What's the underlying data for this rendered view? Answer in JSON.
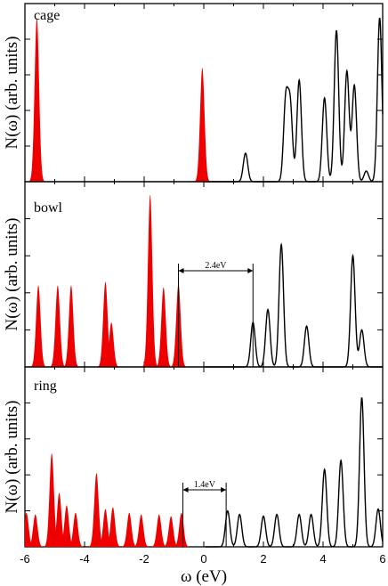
{
  "colors": {
    "occupied": "#ee0000",
    "unoccupied": "#000000"
  },
  "chart_data": {
    "type": "area",
    "xlabel": "ω (eV)",
    "ylabel": "N(ω) (arb. units)",
    "xlim": [
      -6,
      6
    ],
    "xticks": [
      -6,
      -4,
      -2,
      0,
      2,
      4,
      6
    ],
    "tick_labels": [
      "-6",
      "-4",
      "-2",
      "0",
      "2",
      "4",
      "6"
    ],
    "grid": false,
    "legend": "none",
    "fermi_level": 0,
    "panels": [
      {
        "label": "cage",
        "ymax": 1.0,
        "occupied_peaks": [
          [
            -5.6,
            0.92
          ],
          [
            -0.05,
            0.64
          ]
        ],
        "unoccupied_peaks": [
          [
            1.4,
            0.16
          ],
          [
            2.75,
            0.45
          ],
          [
            2.9,
            0.42
          ],
          [
            3.2,
            0.57
          ],
          [
            4.05,
            0.47
          ],
          [
            4.45,
            0.85
          ],
          [
            4.8,
            0.62
          ],
          [
            5.05,
            0.54
          ],
          [
            5.45,
            0.06
          ],
          [
            5.9,
            0.92
          ]
        ]
      },
      {
        "label": "bowl",
        "ymax": 1.0,
        "gap": {
          "from": -0.85,
          "to": 1.65,
          "label": "2.4eV"
        },
        "occupied_peaks": [
          [
            -5.55,
            0.44
          ],
          [
            -4.9,
            0.44
          ],
          [
            -4.45,
            0.44
          ],
          [
            -3.3,
            0.46
          ],
          [
            -3.1,
            0.24
          ],
          [
            -1.8,
            0.93
          ],
          [
            -1.35,
            0.43
          ],
          [
            -0.85,
            0.45
          ]
        ],
        "unoccupied_peaks": [
          [
            1.65,
            0.24
          ],
          [
            2.15,
            0.31
          ],
          [
            2.6,
            0.66
          ],
          [
            3.45,
            0.22
          ],
          [
            5.0,
            0.6
          ],
          [
            5.3,
            0.2
          ]
        ]
      },
      {
        "label": "ring",
        "ymax": 1.0,
        "gap": {
          "from": -0.7,
          "to": 0.75,
          "label": "1.4eV"
        },
        "occupied_peaks": [
          [
            -5.95,
            0.19
          ],
          [
            -5.65,
            0.18
          ],
          [
            -5.1,
            0.52
          ],
          [
            -4.85,
            0.3
          ],
          [
            -4.6,
            0.23
          ],
          [
            -4.3,
            0.19
          ],
          [
            -3.6,
            0.41
          ],
          [
            -3.3,
            0.21
          ],
          [
            -3.05,
            0.22
          ],
          [
            -2.5,
            0.19
          ],
          [
            -2.1,
            0.18
          ],
          [
            -1.5,
            0.18
          ],
          [
            -1.1,
            0.17
          ],
          [
            -0.75,
            0.19
          ]
        ],
        "unoccupied_peaks": [
          [
            0.8,
            0.2
          ],
          [
            1.2,
            0.18
          ],
          [
            2.0,
            0.17
          ],
          [
            2.45,
            0.18
          ],
          [
            3.2,
            0.18
          ],
          [
            3.6,
            0.18
          ],
          [
            4.05,
            0.43
          ],
          [
            4.6,
            0.48
          ],
          [
            5.3,
            0.83
          ],
          [
            5.85,
            0.21
          ]
        ]
      }
    ]
  }
}
